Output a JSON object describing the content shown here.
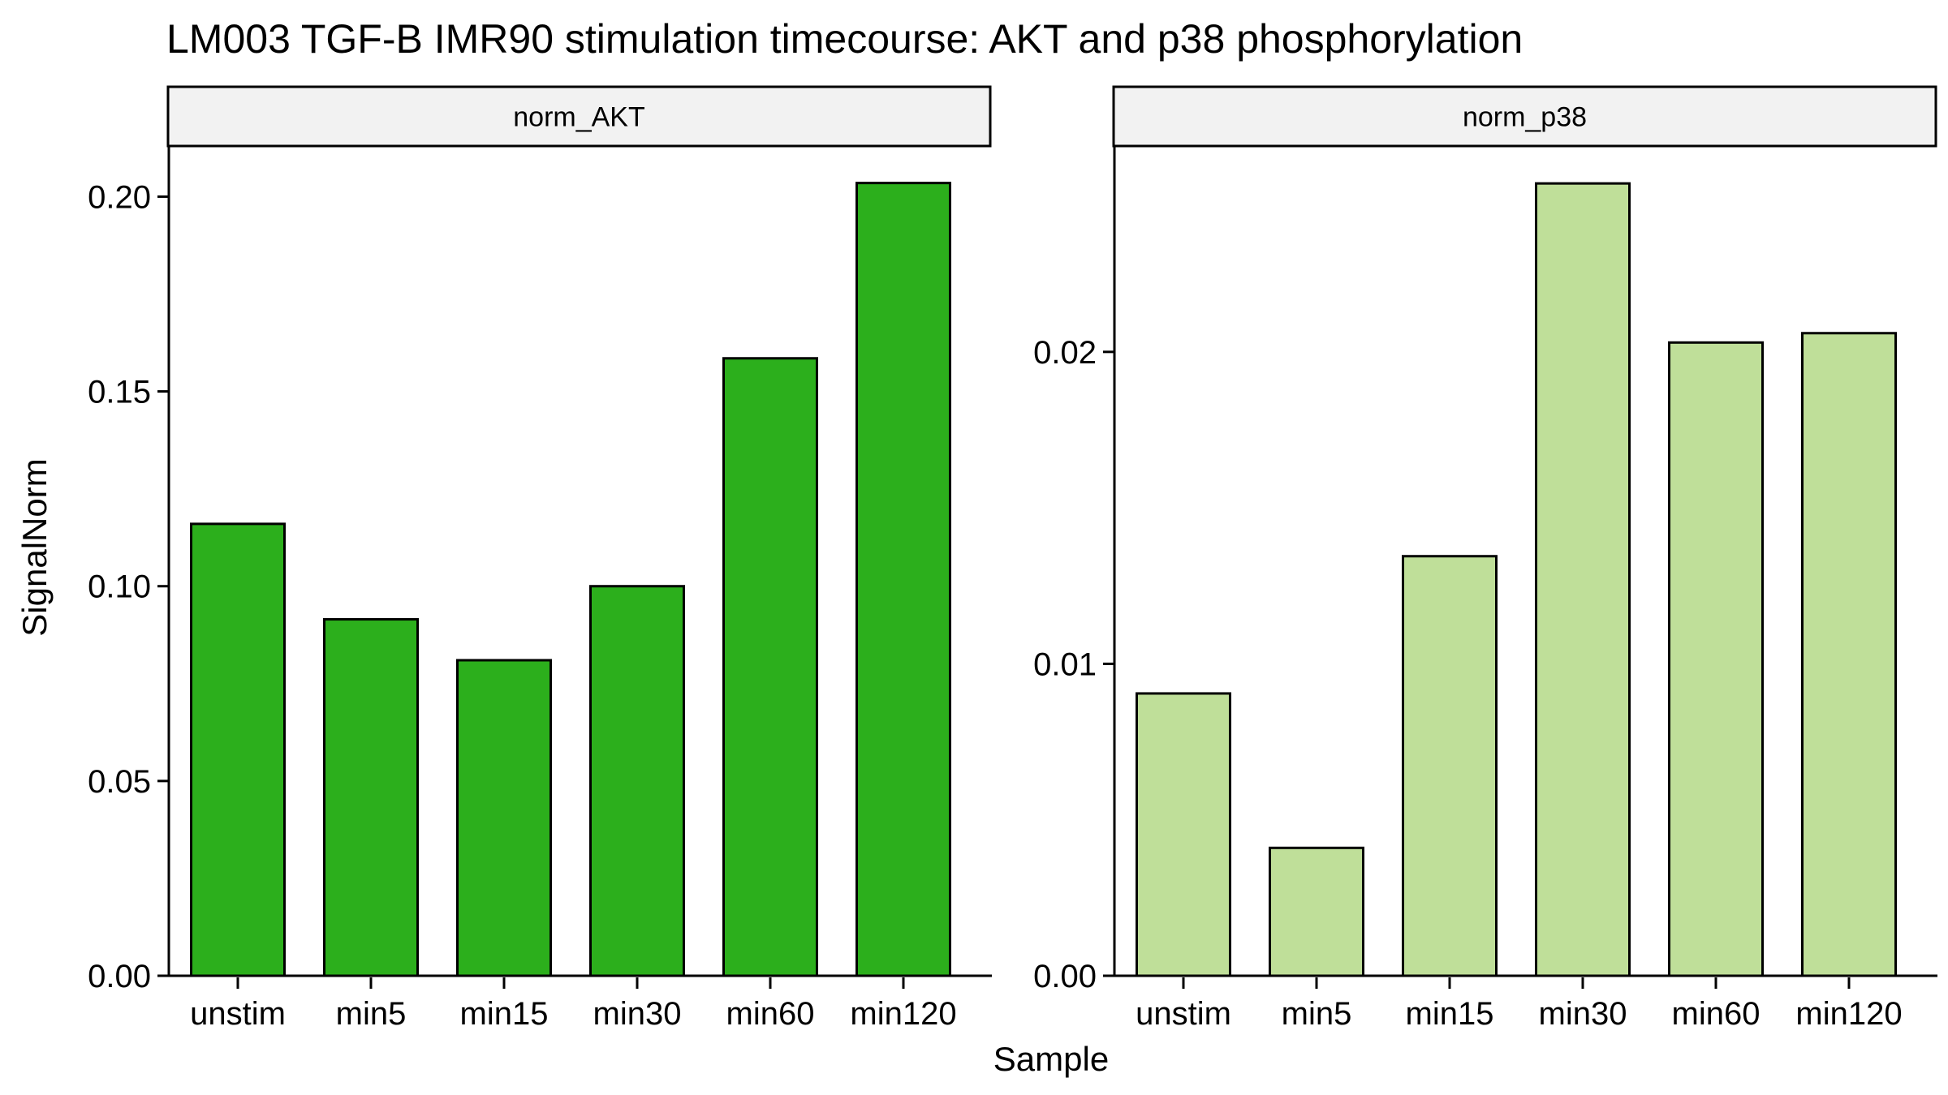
{
  "chart_data": {
    "type": "bar",
    "title": "LM003 TGF-B IMR90 stimulation timecourse: AKT and p38 phosphorylation",
    "xlabel": "Sample",
    "ylabel": "SignalNorm",
    "categories": [
      "unstim",
      "min5",
      "min15",
      "min30",
      "min60",
      "min120"
    ],
    "grid": false,
    "legend": "none",
    "panels": [
      {
        "name": "norm_AKT",
        "color": "#2caf1c",
        "ylim": [
          0,
          0.213
        ],
        "yticks": [
          0,
          0.05,
          0.1,
          0.15,
          0.2
        ],
        "ytick_labels": [
          "0.00",
          "0.05",
          "0.10",
          "0.15",
          "0.20"
        ],
        "values": [
          0.116,
          0.0915,
          0.081,
          0.1,
          0.1585,
          0.2035
        ]
      },
      {
        "name": "norm_p38",
        "color": "#bfdf99",
        "ylim": [
          0,
          0.0266
        ],
        "yticks": [
          0,
          0.01,
          0.02
        ],
        "ytick_labels": [
          "0.00",
          "0.01",
          "0.02"
        ],
        "values": [
          0.00905,
          0.0041,
          0.01345,
          0.0254,
          0.0203,
          0.0206
        ]
      }
    ]
  }
}
